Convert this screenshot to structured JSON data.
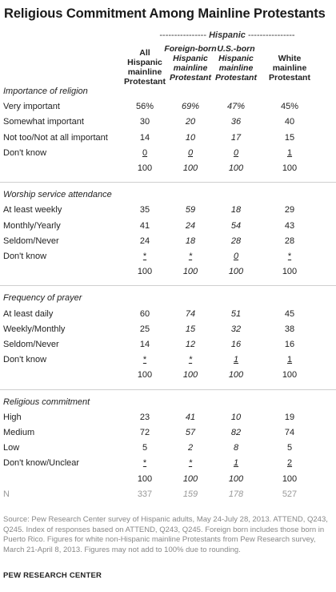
{
  "title": "Religious Commitment Among Mainline Protestants",
  "group_header": {
    "dashes_left": "----------------",
    "label": "Hispanic",
    "dashes_right": "----------------"
  },
  "columns": [
    {
      "lines": [
        "All",
        "Hispanic",
        "mainline",
        "Protestant"
      ],
      "italic": false
    },
    {
      "lines": [
        "Foreign-born",
        "Hispanic",
        "mainline",
        "Protestant"
      ],
      "italic": true
    },
    {
      "lines": [
        "U.S.-born",
        "Hispanic",
        "mainline",
        "Protestant"
      ],
      "italic": true
    },
    {
      "lines": [
        "White",
        "mainline",
        "Protestant"
      ],
      "italic": false
    }
  ],
  "rows": [
    {
      "type": "section",
      "label": "Importance of religion"
    },
    {
      "type": "data",
      "label": "Very important",
      "values": [
        "56%",
        "69%",
        "47%",
        "45%"
      ]
    },
    {
      "type": "data",
      "label": "Somewhat important",
      "values": [
        "30",
        "20",
        "36",
        "40"
      ]
    },
    {
      "type": "data",
      "label": "Not too/Not at all important",
      "values": [
        "14",
        "10",
        "17",
        "15"
      ]
    },
    {
      "type": "data",
      "label": "Don't know",
      "values": [
        "0",
        "0",
        "0",
        "1"
      ],
      "underline": true
    },
    {
      "type": "total",
      "label": "",
      "values": [
        "100",
        "100",
        "100",
        "100"
      ]
    },
    {
      "type": "divider"
    },
    {
      "type": "section",
      "label": "Worship service attendance"
    },
    {
      "type": "data",
      "label": "At least weekly",
      "values": [
        "35",
        "59",
        "18",
        "29"
      ]
    },
    {
      "type": "data",
      "label": "Monthly/Yearly",
      "values": [
        "41",
        "24",
        "54",
        "43"
      ]
    },
    {
      "type": "data",
      "label": "Seldom/Never",
      "values": [
        "24",
        "18",
        "28",
        "28"
      ]
    },
    {
      "type": "data",
      "label": "Don't know",
      "values": [
        "*",
        "*",
        "0",
        "*"
      ],
      "underline": true
    },
    {
      "type": "total",
      "label": "",
      "values": [
        "100",
        "100",
        "100",
        "100"
      ]
    },
    {
      "type": "divider"
    },
    {
      "type": "section",
      "label": "Frequency of prayer"
    },
    {
      "type": "data",
      "label": "At least daily",
      "values": [
        "60",
        "74",
        "51",
        "45"
      ]
    },
    {
      "type": "data",
      "label": "Weekly/Monthly",
      "values": [
        "25",
        "15",
        "32",
        "38"
      ]
    },
    {
      "type": "data",
      "label": "Seldom/Never",
      "values": [
        "14",
        "12",
        "16",
        "16"
      ]
    },
    {
      "type": "data",
      "label": "Don't know",
      "values": [
        "*",
        "*",
        "1",
        "1"
      ],
      "underline": true
    },
    {
      "type": "total",
      "label": "",
      "values": [
        "100",
        "100",
        "100",
        "100"
      ]
    },
    {
      "type": "divider"
    },
    {
      "type": "section",
      "label": "Religious commitment"
    },
    {
      "type": "data",
      "label": "High",
      "values": [
        "23",
        "41",
        "10",
        "19"
      ]
    },
    {
      "type": "data",
      "label": "Medium",
      "values": [
        "72",
        "57",
        "82",
        "74"
      ]
    },
    {
      "type": "data",
      "label": "Low",
      "values": [
        "5",
        "2",
        "8",
        "5"
      ]
    },
    {
      "type": "data",
      "label": "Don't know/Unclear",
      "values": [
        "*",
        "*",
        "1",
        "2"
      ],
      "underline": true
    },
    {
      "type": "total",
      "label": "",
      "values": [
        "100",
        "100",
        "100",
        "100"
      ]
    },
    {
      "type": "n",
      "label": "N",
      "values": [
        "337",
        "159",
        "178",
        "527"
      ]
    }
  ],
  "source": "Source: Pew Research Center survey of Hispanic adults, May 24-July 28, 2013. ATTEND, Q243, Q245. Index of responses based on ATTEND, Q243, Q245. Foreign born includes those born in Puerto Rico. Figures for white non-Hispanic mainline Protestants from Pew Research survey, March 21-April 8, 2013. Figures may not add to 100% due to rounding.",
  "credit": "PEW RESEARCH CENTER"
}
